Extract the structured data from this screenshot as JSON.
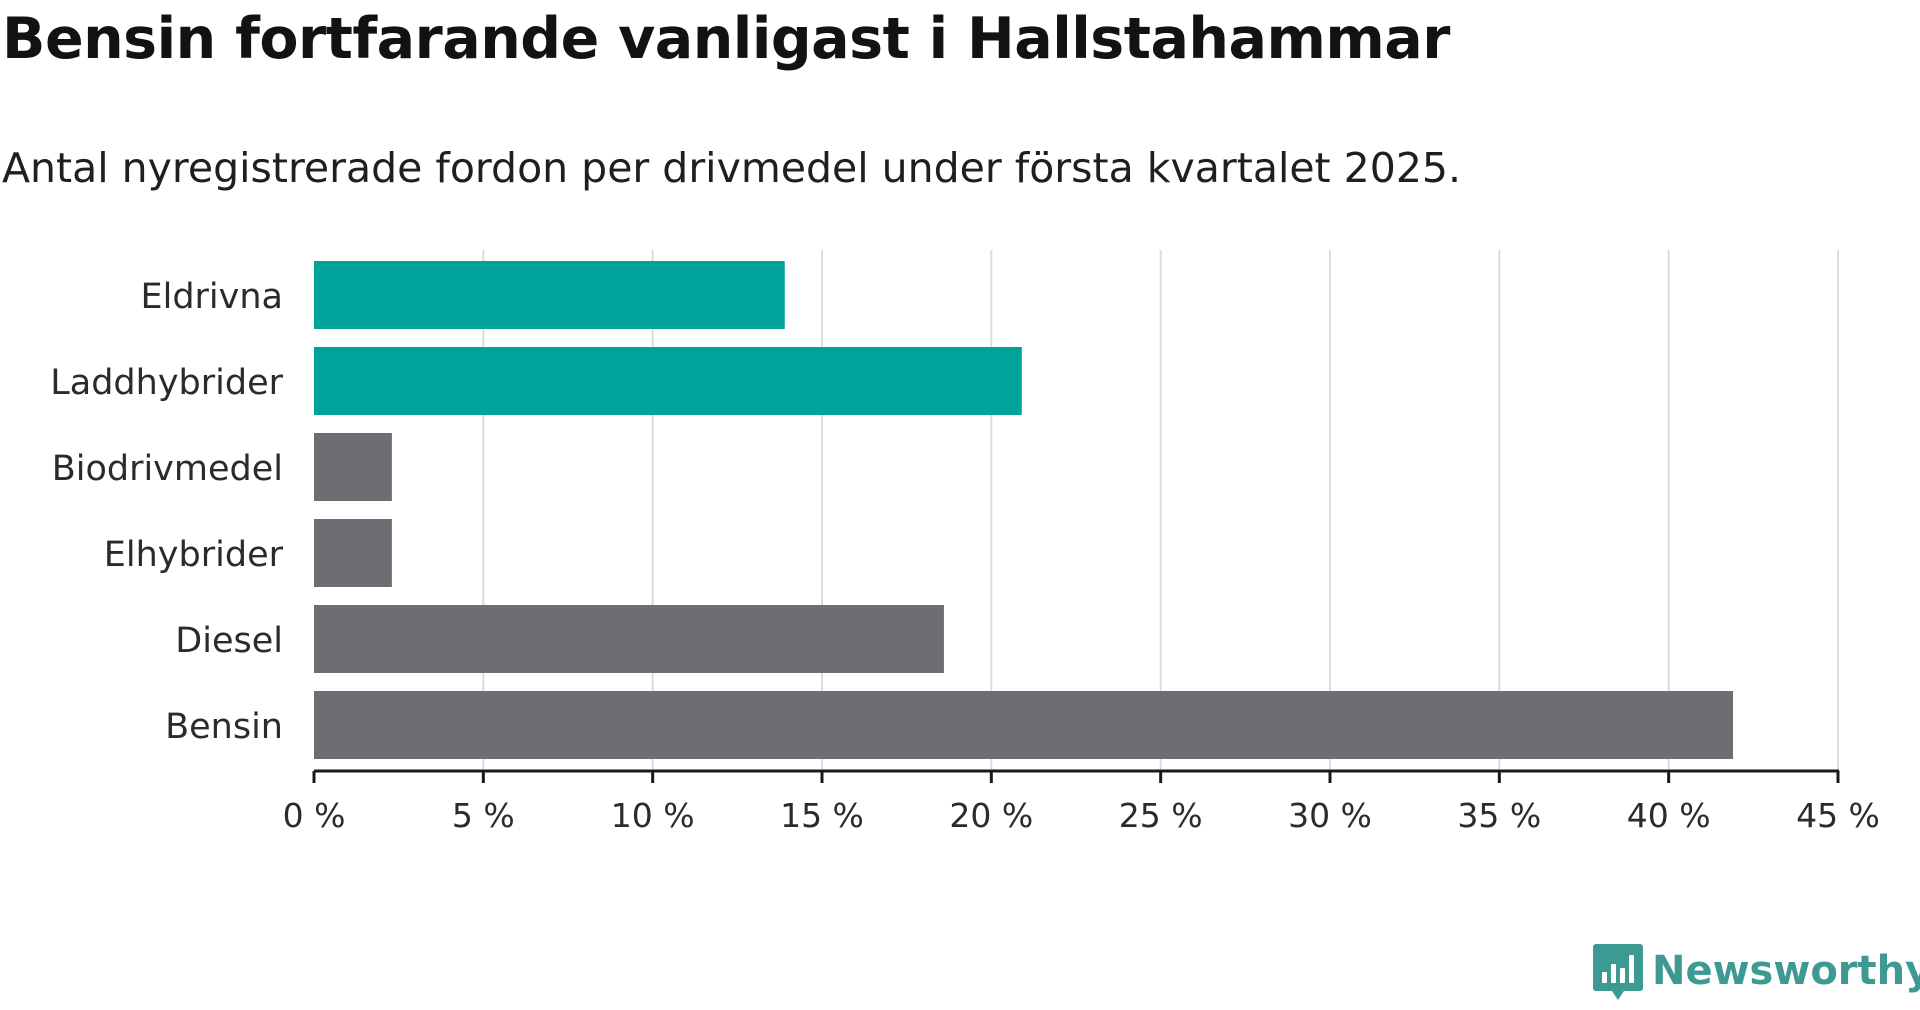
{
  "title": "Bensin fortfarande vanligast i Hallstahammar",
  "subtitle": "Antal nyregistrerade fordon per drivmedel under första kvartalet 2025.",
  "logo_text": "Newsworthy",
  "colors": {
    "highlight": "#00a39a",
    "default": "#6e6d73",
    "grid": "#dcdcdc",
    "axis": "#1a1a1a",
    "logo": "#3d9a93"
  },
  "chart_data": {
    "type": "bar",
    "orientation": "horizontal",
    "title": "Bensin fortfarande vanligast i Hallstahammar",
    "subtitle": "Antal nyregistrerade fordon per drivmedel under första kvartalet 2025.",
    "categories": [
      "Eldrivna",
      "Laddhybrider",
      "Biodrivmedel",
      "Elhybrider",
      "Diesel",
      "Bensin"
    ],
    "values": [
      13.9,
      20.9,
      2.3,
      2.3,
      18.6,
      41.9
    ],
    "highlighted": [
      true,
      true,
      false,
      false,
      false,
      false
    ],
    "unit": "%",
    "xlim": [
      0,
      45
    ],
    "xticks": [
      0,
      5,
      10,
      15,
      20,
      25,
      30,
      35,
      40,
      45
    ],
    "xtick_labels": [
      "0 %",
      "5 %",
      "10 %",
      "15 %",
      "20 %",
      "25 %",
      "30 %",
      "35 %",
      "40 %",
      "45 %"
    ],
    "xlabel": "",
    "ylabel": "",
    "grid": "vertical",
    "legend": "none"
  }
}
